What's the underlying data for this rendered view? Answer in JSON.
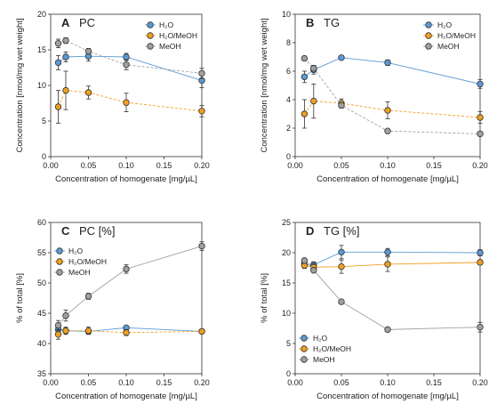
{
  "figure": {
    "colors": {
      "H2O": "#5b9bd5",
      "H2O/MeOH": "#f0a020",
      "MeOH": "#a0a0a0"
    }
  },
  "chart_data": [
    {
      "type": "line",
      "panel_letter": "A",
      "title": "PC",
      "xlabel": "Concentration of homogenate [mg/µL]",
      "ylabel": "Concentration [nmol/mg wet weight]",
      "xlim": [
        0,
        0.2
      ],
      "ylim": [
        0,
        20
      ],
      "xticks": [
        0,
        0.05,
        0.1,
        0.15,
        0.2
      ],
      "xtick_labels": [
        "0.00",
        "0.05",
        "0.10",
        "0.15",
        "0.20"
      ],
      "yticks": [
        0,
        5,
        10,
        15,
        20
      ],
      "ytick_labels": [
        "0",
        "5",
        "10",
        "15",
        "20"
      ],
      "legend_position": "top-right",
      "series": [
        {
          "name": "H₂O",
          "color": "#5b9bd5",
          "dash": false,
          "x": [
            0.01,
            0.02,
            0.05,
            0.1,
            0.2
          ],
          "y": [
            13.2,
            14.0,
            14.1,
            14.0,
            10.7
          ],
          "err": [
            1.0,
            0.7,
            0.7,
            0.5,
            1.0
          ]
        },
        {
          "name": "H₂O/MeOH",
          "color": "#f0a020",
          "dash": true,
          "x": [
            0.01,
            0.02,
            0.05,
            0.1,
            0.2
          ],
          "y": [
            7.0,
            9.3,
            9.0,
            7.6,
            6.4
          ],
          "err": [
            2.3,
            2.7,
            0.9,
            1.3,
            0.8
          ]
        },
        {
          "name": "MeOH",
          "color": "#a0a0a0",
          "dash": true,
          "x": [
            0.01,
            0.02,
            0.05,
            0.1,
            0.2
          ],
          "y": [
            15.9,
            16.3,
            14.8,
            12.9,
            11.7
          ],
          "err": [
            0.6,
            0.4,
            0.4,
            0.7,
            0.7
          ]
        }
      ]
    },
    {
      "type": "line",
      "panel_letter": "B",
      "title": "TG",
      "xlabel": "Concentration of homogenate [mg/µL]",
      "ylabel": "Concentration [nmol/mg wet weight]",
      "xlim": [
        0,
        0.2
      ],
      "ylim": [
        0,
        10
      ],
      "xticks": [
        0,
        0.05,
        0.1,
        0.15,
        0.2
      ],
      "xtick_labels": [
        "0.00",
        "0.05",
        "0.10",
        "0.15",
        "0.20"
      ],
      "yticks": [
        0,
        2,
        4,
        6,
        8,
        10
      ],
      "ytick_labels": [
        "0",
        "2",
        "4",
        "6",
        "8",
        "10"
      ],
      "legend_position": "top-right",
      "series": [
        {
          "name": "H₂O",
          "color": "#5b9bd5",
          "dash": false,
          "x": [
            0.01,
            0.02,
            0.05,
            0.1,
            0.2
          ],
          "y": [
            5.6,
            6.1,
            6.95,
            6.6,
            5.1
          ],
          "err": [
            0.4,
            0.3,
            0.1,
            0.2,
            0.3
          ]
        },
        {
          "name": "H₂O/MeOH",
          "color": "#f0a020",
          "dash": true,
          "x": [
            0.01,
            0.02,
            0.05,
            0.1,
            0.2
          ],
          "y": [
            3.0,
            3.9,
            3.75,
            3.25,
            2.75
          ],
          "err": [
            1.0,
            1.2,
            0.3,
            0.6,
            0.4
          ]
        },
        {
          "name": "MeOH",
          "color": "#a0a0a0",
          "dash": true,
          "x": [
            0.01,
            0.02,
            0.05,
            0.1,
            0.2
          ],
          "y": [
            6.9,
            6.2,
            3.6,
            1.8,
            1.6
          ],
          "err": [
            0.15,
            0.2,
            0.2,
            0.1,
            0.15
          ]
        }
      ]
    },
    {
      "type": "line",
      "panel_letter": "C",
      "title": "PC [%]",
      "xlabel": "Concentration of homogenate [mg/µL]",
      "ylabel": "% of total [%]",
      "xlim": [
        0,
        0.2
      ],
      "ylim": [
        35,
        60
      ],
      "xticks": [
        0,
        0.05,
        0.1,
        0.15,
        0.2
      ],
      "xtick_labels": [
        "0.00",
        "0.05",
        "0.10",
        "0.15",
        "0.20"
      ],
      "yticks": [
        35,
        40,
        45,
        50,
        55,
        60
      ],
      "ytick_labels": [
        "35",
        "40",
        "45",
        "50",
        "55",
        "60"
      ],
      "legend_position": "top-left",
      "series": [
        {
          "name": "H₂O",
          "color": "#5b9bd5",
          "dash": false,
          "x": [
            0.01,
            0.02,
            0.05,
            0.1,
            0.2
          ],
          "y": [
            42.3,
            42.1,
            42.0,
            42.6,
            42.0
          ],
          "err": [
            0.5,
            0.4,
            0.4,
            0.3,
            0.3
          ]
        },
        {
          "name": "H₂O/MeOH",
          "color": "#f0a020",
          "dash": true,
          "x": [
            0.01,
            0.02,
            0.05,
            0.1,
            0.2
          ],
          "y": [
            41.5,
            42.1,
            42.1,
            41.8,
            42.0
          ],
          "err": [
            0.8,
            0.6,
            0.6,
            0.5,
            0.3
          ]
        },
        {
          "name": "MeOH",
          "color": "#a0a0a0",
          "dash": false,
          "x": [
            0.01,
            0.02,
            0.05,
            0.1,
            0.2
          ],
          "y": [
            43.0,
            44.6,
            47.8,
            52.3,
            56.1
          ],
          "err": [
            0.8,
            0.9,
            0.5,
            0.7,
            0.7
          ]
        }
      ]
    },
    {
      "type": "line",
      "panel_letter": "D",
      "title": "TG [%]",
      "xlabel": "Concentration of homogenate [mg/µL]",
      "ylabel": "% of total [%]",
      "xlim": [
        0,
        0.2
      ],
      "ylim": [
        0,
        25
      ],
      "xticks": [
        0,
        0.05,
        0.1,
        0.15,
        0.2
      ],
      "xtick_labels": [
        "0.00",
        "0.05",
        "0.10",
        "0.15",
        "0.20"
      ],
      "yticks": [
        0,
        5,
        10,
        15,
        20,
        25
      ],
      "ytick_labels": [
        "0",
        "5",
        "10",
        "15",
        "20",
        "25"
      ],
      "legend_position": "bottom-left",
      "series": [
        {
          "name": "H₂O",
          "color": "#5b9bd5",
          "dash": false,
          "x": [
            0.01,
            0.02,
            0.05,
            0.1,
            0.2
          ],
          "y": [
            18.2,
            18.0,
            20.1,
            20.1,
            20.0
          ],
          "err": [
            0.6,
            0.5,
            1.1,
            0.6,
            0.5
          ]
        },
        {
          "name": "H₂O/MeOH",
          "color": "#f0a020",
          "dash": false,
          "x": [
            0.01,
            0.02,
            0.05,
            0.1,
            0.2
          ],
          "y": [
            17.9,
            17.6,
            17.7,
            18.1,
            18.4
          ],
          "err": [
            0.5,
            0.6,
            1.1,
            1.2,
            0.4
          ]
        },
        {
          "name": "MeOH",
          "color": "#a0a0a0",
          "dash": false,
          "x": [
            0.01,
            0.02,
            0.05,
            0.1,
            0.2
          ],
          "y": [
            18.7,
            17.1,
            11.9,
            7.3,
            7.7
          ],
          "err": [
            0.4,
            0.3,
            0.2,
            0.3,
            0.8
          ]
        }
      ]
    }
  ]
}
